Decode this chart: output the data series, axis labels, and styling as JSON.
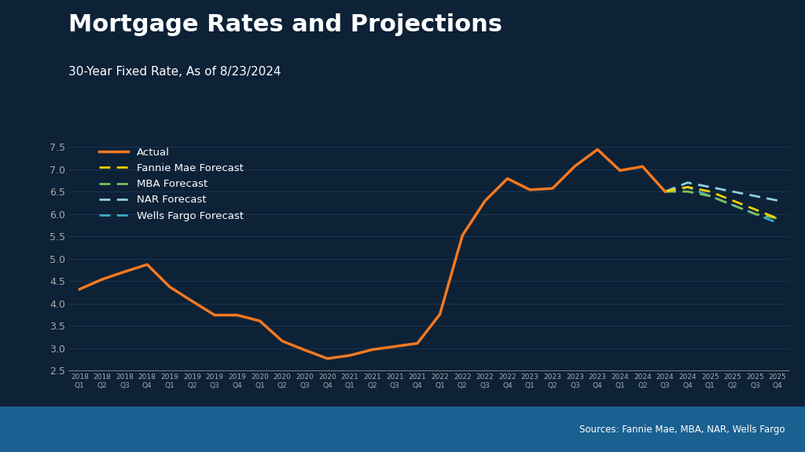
{
  "title": "Mortgage Rates and Projections",
  "subtitle": "30-Year Fixed Rate, As of 8/23/2024",
  "source": "Sources: Fannie Mae, MBA, NAR, Wells Fargo",
  "bg_color": "#0d2137",
  "plot_bg_color": "#0d2137",
  "title_color": "#ffffff",
  "subtitle_color": "#ffffff",
  "source_color": "#ffffff",
  "axis_color": "#aaaaaa",
  "grid_color": "#1e3a55",
  "bottom_bar_color": "#1a6090",
  "ylim": [
    2.5,
    7.75
  ],
  "yticks": [
    2.5,
    3.0,
    3.5,
    4.0,
    4.5,
    5.0,
    5.5,
    6.0,
    6.5,
    7.0,
    7.5
  ],
  "actual_color": "#f47920",
  "fannie_mae_color": "#f0d000",
  "mba_color": "#7abf5e",
  "nar_color": "#90d0e0",
  "wells_fargo_color": "#40a8c8",
  "actual_quarters": [
    "2018 Q1",
    "2018 Q2",
    "2018 Q3",
    "2018 Q4",
    "2019 Q1",
    "2019 Q2",
    "2019 Q3",
    "2019 Q4",
    "2020 Q1",
    "2020 Q2",
    "2020 Q3",
    "2020 Q4",
    "2021 Q1",
    "2021 Q2",
    "2021 Q3",
    "2021 Q4",
    "2022 Q1",
    "2022 Q2",
    "2022 Q3",
    "2022 Q4",
    "2023 Q1",
    "2023 Q2",
    "2023 Q3",
    "2023 Q4",
    "2024 Q1",
    "2024 Q2",
    "2024 Q3"
  ],
  "actual_values": [
    4.32,
    4.54,
    4.71,
    4.87,
    4.37,
    4.05,
    3.74,
    3.74,
    3.61,
    3.16,
    2.96,
    2.77,
    2.84,
    2.97,
    3.04,
    3.11,
    3.76,
    5.52,
    6.29,
    6.79,
    6.54,
    6.57,
    7.07,
    7.44,
    6.97,
    7.06,
    6.5
  ],
  "forecast_quarters": [
    "2024 Q3",
    "2024 Q4",
    "2025 Q1",
    "2025 Q2",
    "2025 Q3",
    "2025 Q4"
  ],
  "fannie_mae_values": [
    6.5,
    6.6,
    6.5,
    6.3,
    6.1,
    5.9
  ],
  "mba_values": [
    6.5,
    6.5,
    6.4,
    6.2,
    6.0,
    5.9
  ],
  "nar_values": [
    6.5,
    6.7,
    6.6,
    6.5,
    6.4,
    6.3
  ],
  "wells_fargo_values": [
    6.5,
    6.6,
    6.4,
    6.2,
    6.0,
    5.8
  ],
  "all_quarters": [
    "2018 Q1",
    "2018 Q2",
    "2018 Q3",
    "2018 Q4",
    "2019 Q1",
    "2019 Q2",
    "2019 Q3",
    "2019 Q4",
    "2020 Q1",
    "2020 Q2",
    "2020 Q3",
    "2020 Q4",
    "2021 Q1",
    "2021 Q2",
    "2021 Q3",
    "2021 Q4",
    "2022 Q1",
    "2022 Q2",
    "2022 Q3",
    "2022 Q4",
    "2023 Q1",
    "2023 Q2",
    "2023 Q3",
    "2023 Q4",
    "2024 Q1",
    "2024 Q2",
    "2024 Q3",
    "2024 Q4",
    "2025 Q1",
    "2025 Q2",
    "2025 Q3",
    "2025 Q4"
  ]
}
